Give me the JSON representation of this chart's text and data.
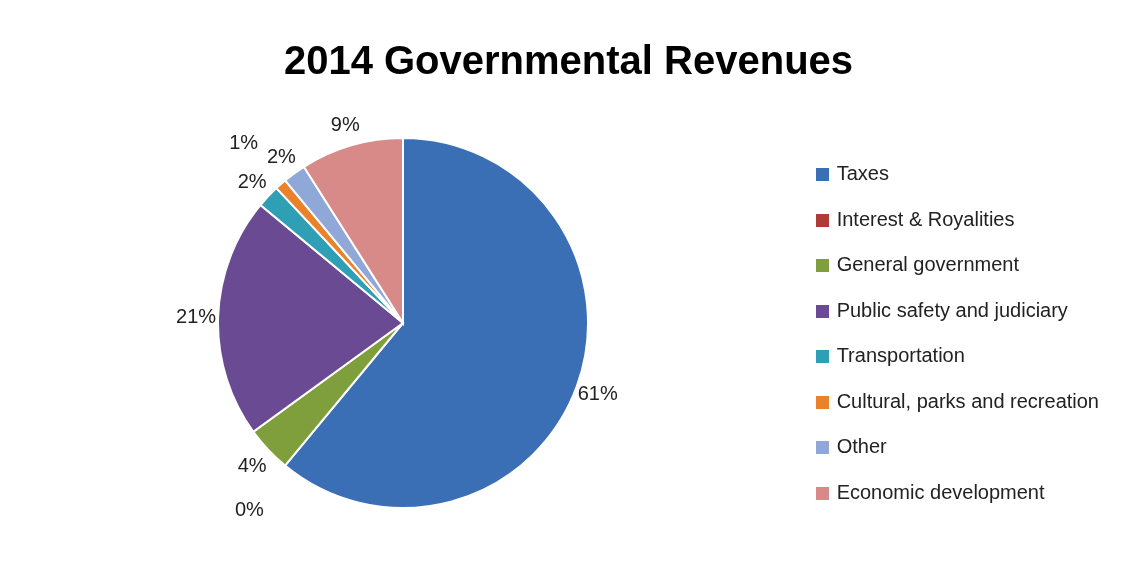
{
  "chart_data": {
    "type": "pie",
    "title": "2014 Governmental Revenues",
    "categories": [
      "Taxes",
      "Interest & Royalities",
      "General government",
      "Public safety and judiciary",
      "Transportation",
      "Cultural, parks and recreation",
      "Other",
      "Economic development"
    ],
    "values": [
      61,
      0,
      4,
      21,
      2,
      1,
      2,
      9
    ],
    "colors": [
      "#3a6fb5",
      "#b03a36",
      "#7f9f3c",
      "#6a4a93",
      "#2f9fb5",
      "#e9822a",
      "#8fa8d8",
      "#d88a88"
    ],
    "value_labels": [
      "61%",
      "0%",
      "4%",
      "21%",
      "2%",
      "1%",
      "2%",
      "9%"
    ],
    "legend": "right"
  }
}
